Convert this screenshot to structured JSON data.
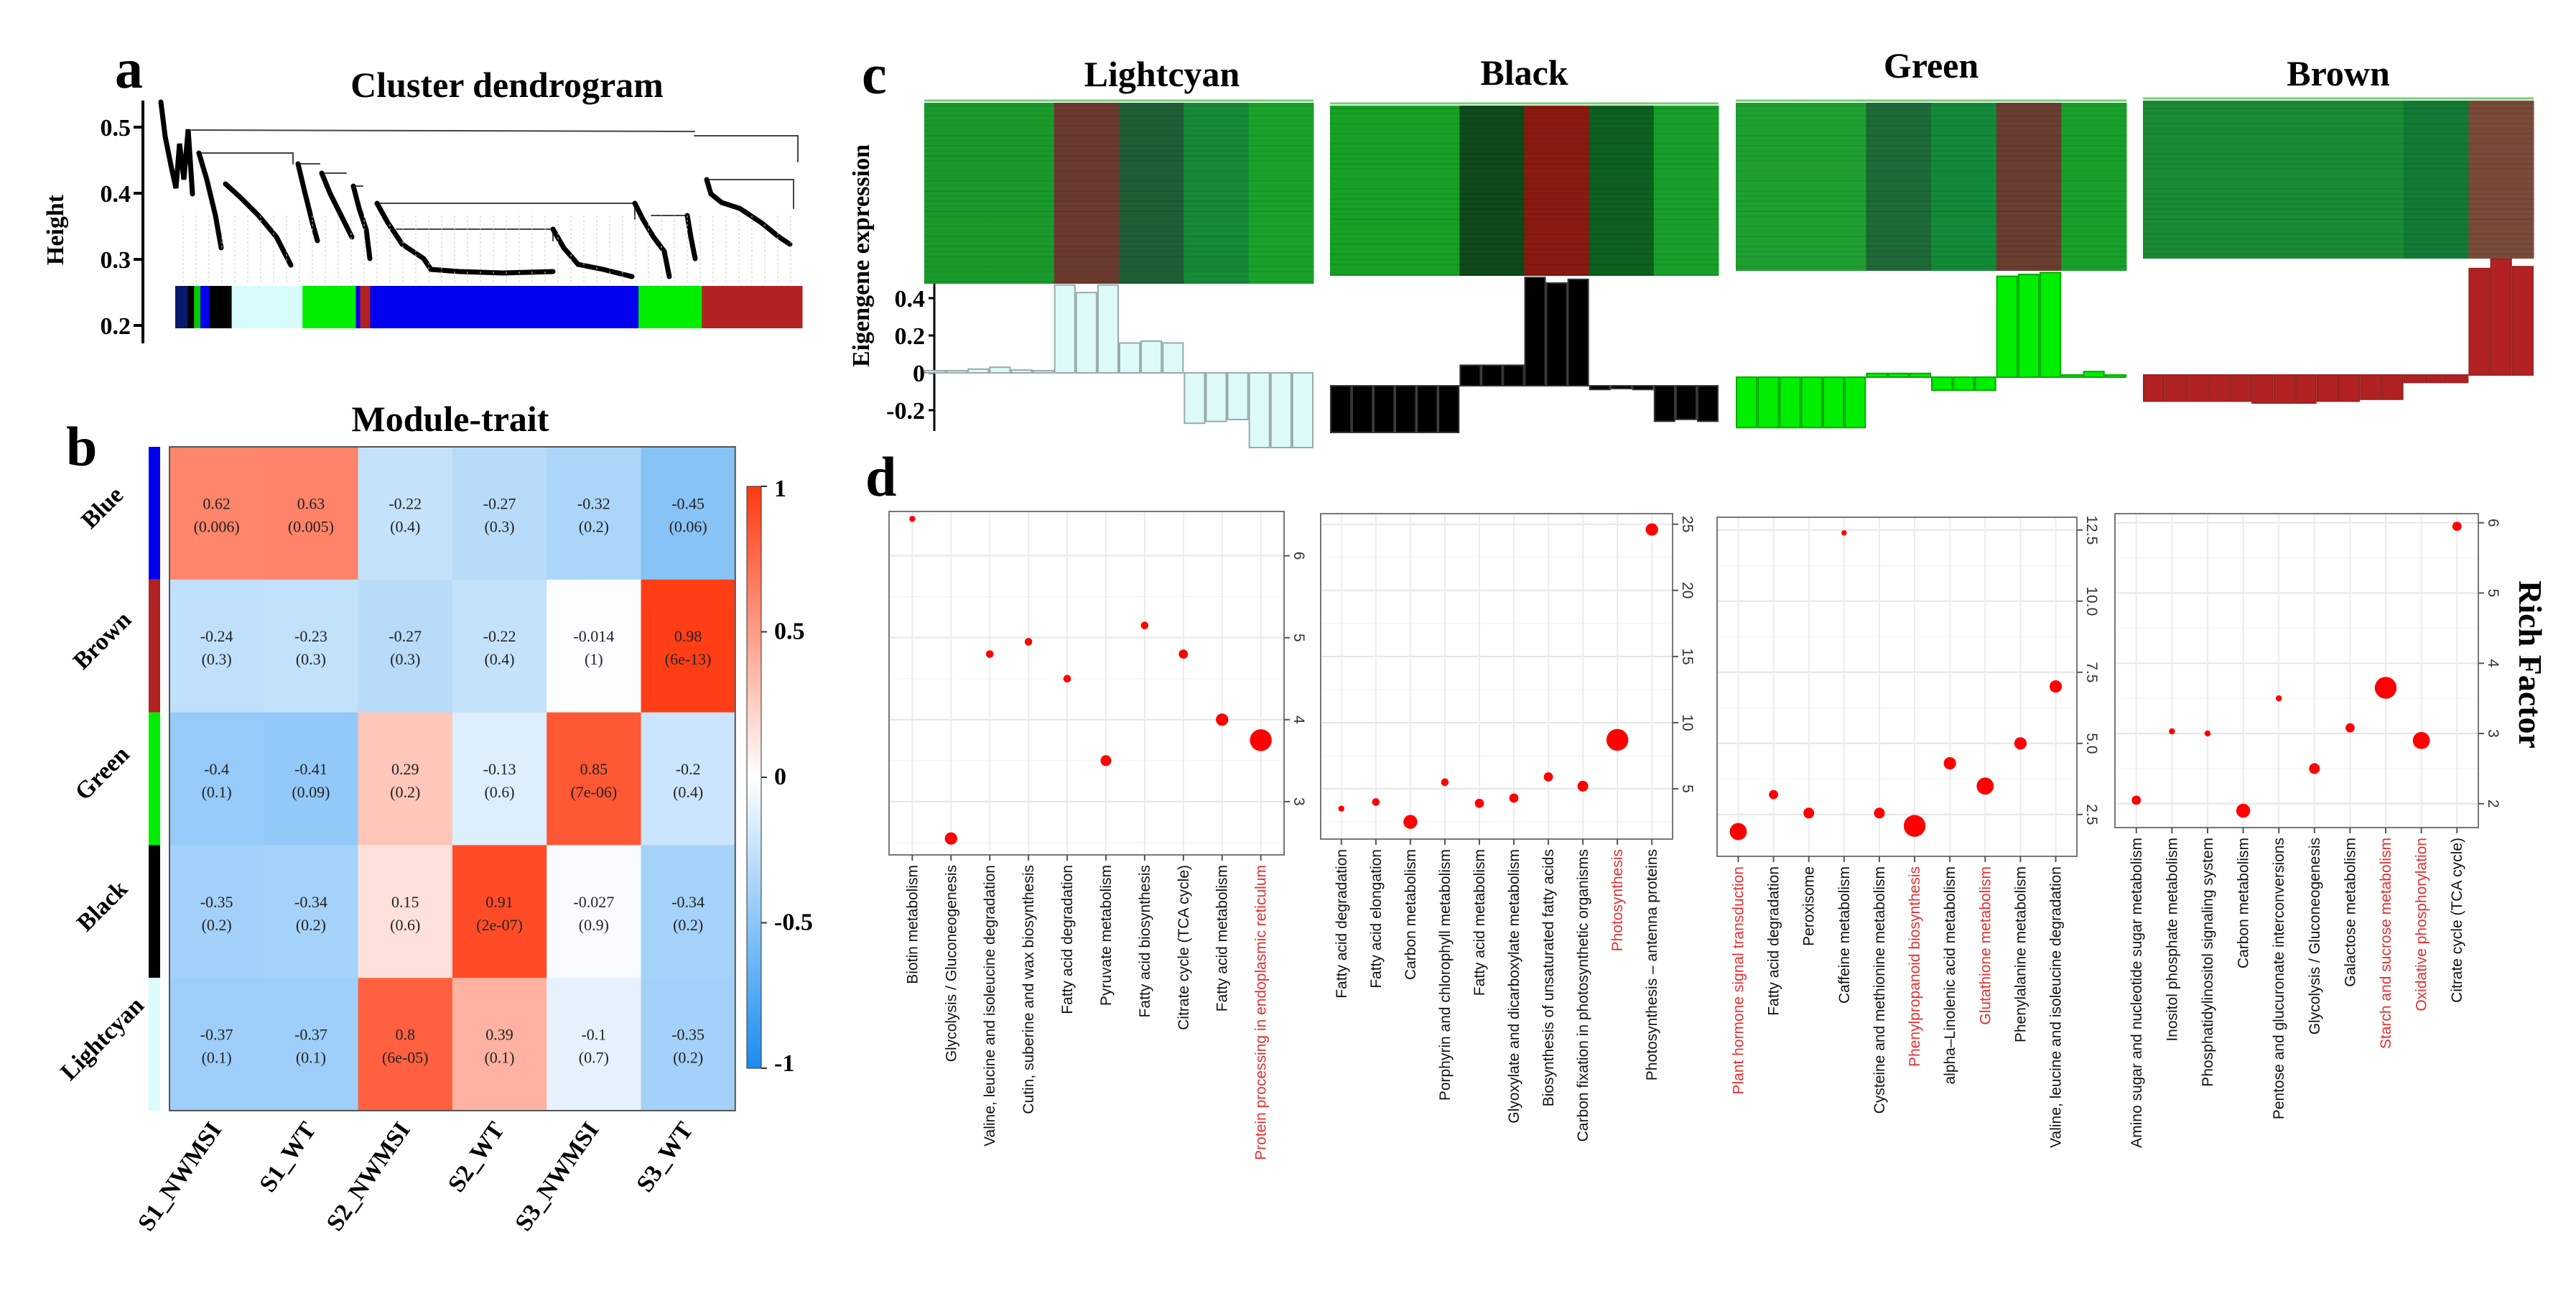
{
  "panel_labels": {
    "a": "a",
    "b": "b",
    "c": "c",
    "d": "d"
  },
  "chart_data": [
    {
      "type": "dendrogram",
      "title": "Cluster dendrogram",
      "ylabel": "Height",
      "yticks": [
        "0.5",
        "0.4",
        "0.3",
        "0.2"
      ],
      "module_color_strip": [
        "#0a1a6a",
        "#000000",
        "#00cc00",
        "#0000ee",
        "#000000",
        "#d8fbfb",
        "#00ee00",
        "#0000ee",
        "#b22222",
        "#0000ee",
        "#00ee00",
        "#b22222"
      ]
    },
    {
      "type": "heatmap",
      "title": "Module-trait",
      "rows": [
        "Blue",
        "Brown",
        "Green",
        "Black",
        "Lightcyan"
      ],
      "row_colors": [
        "#0000ee",
        "#b22222",
        "#00ee00",
        "#000000",
        "#dcfcfc"
      ],
      "columns": [
        "S1_NWMSI",
        "S1_WT",
        "S2_NWMSI",
        "S2_WT",
        "S3_NWMSI",
        "S3_WT"
      ],
      "values": [
        [
          0.62,
          0.63,
          -0.22,
          -0.27,
          -0.32,
          -0.45
        ],
        [
          -0.24,
          -0.23,
          -0.27,
          -0.22,
          -0.014,
          0.98
        ],
        [
          -0.4,
          -0.41,
          0.29,
          -0.13,
          0.85,
          -0.2
        ],
        [
          -0.35,
          -0.34,
          0.15,
          0.91,
          -0.027,
          -0.34
        ],
        [
          -0.37,
          -0.37,
          0.8,
          0.39,
          -0.1,
          -0.35
        ]
      ],
      "pvalues": [
        [
          "(0.006)",
          "(0.005)",
          "(0.4)",
          "(0.3)",
          "(0.2)",
          "(0.06)"
        ],
        [
          "(0.3)",
          "(0.3)",
          "(0.3)",
          "(0.4)",
          "(1)",
          "(6e-13)"
        ],
        [
          "(0.1)",
          "(0.09)",
          "(0.2)",
          "(0.6)",
          "(7e-06)",
          "(0.4)"
        ],
        [
          "(0.2)",
          "(0.2)",
          "(0.6)",
          "(2e-07)",
          "(0.9)",
          "(0.2)"
        ],
        [
          "(0.1)",
          "(0.1)",
          "(6e-05)",
          "(0.1)",
          "(0.7)",
          "(0.2)"
        ]
      ],
      "zlim": [
        -1,
        1
      ],
      "colorbar_ticks": [
        "1",
        "0.5",
        "0",
        "-0.5",
        "-1"
      ],
      "colors": {
        "positive": "#ff3a10",
        "negative": "#1a8cf0"
      }
    },
    {
      "type": "bar",
      "ylabel": "Eigengene expression",
      "yticks": [
        "0.4",
        "0.2",
        "0",
        "-0.2"
      ],
      "modules": [
        {
          "name": "Lightcyan",
          "bar_color": "#dcfafa",
          "bar_edge": "#9aa",
          "heatmap_columns": [
            "#1a9a2c",
            "#1a9a2c",
            "#6b3a2e",
            "#1e5e35",
            "#168a35",
            "#19a22a"
          ],
          "values": [
            0.003,
            0.01,
            0.02,
            0.03,
            0.015,
            0.005,
            0.47,
            0.43,
            0.47,
            0.16,
            0.17,
            0.16,
            -0.27,
            -0.26,
            -0.25,
            -0.4,
            -0.4,
            -0.4
          ]
        },
        {
          "name": "Black",
          "bar_color": "#000000",
          "bar_edge": "#333",
          "heatmap_columns": [
            "#16a224",
            "#16a224",
            "#0e4a1a",
            "#8a1a10",
            "#0d6020",
            "#18a02a"
          ],
          "values": [
            -0.25,
            -0.25,
            -0.25,
            -0.25,
            -0.25,
            -0.25,
            0.11,
            0.11,
            0.11,
            0.58,
            0.55,
            0.57,
            -0.02,
            -0.015,
            -0.02,
            -0.19,
            -0.18,
            -0.19
          ]
        },
        {
          "name": "Green",
          "bar_color": "#00ee00",
          "bar_edge": "#0a0",
          "heatmap_columns": [
            "#1ea030",
            "#1ea030",
            "#1d6a38",
            "#138a38",
            "#6a3e30",
            "#19a02a"
          ],
          "values": [
            -0.27,
            -0.27,
            -0.27,
            -0.27,
            -0.27,
            -0.27,
            0.02,
            0.02,
            0.02,
            -0.07,
            -0.07,
            -0.07,
            0.54,
            0.55,
            0.56,
            0.01,
            0.03,
            0.01
          ]
        },
        {
          "name": "Brown",
          "bar_color": "#b22222",
          "bar_edge": "#922",
          "heatmap_columns": [
            "#1a8a33",
            "#1a8a33",
            "#1a8a33",
            "#1a8a33",
            "#137a35",
            "#7a4a3a"
          ],
          "values": [
            -0.14,
            -0.14,
            -0.14,
            -0.14,
            -0.14,
            -0.15,
            -0.15,
            -0.15,
            -0.14,
            -0.14,
            -0.13,
            -0.13,
            -0.04,
            -0.04,
            -0.04,
            0.57,
            0.62,
            0.58
          ]
        }
      ]
    },
    {
      "type": "scatter",
      "ylabel": "Rich Factor",
      "point_color": "#ff0000",
      "highlight_color": "#e03030",
      "plots": [
        {
          "categories": [
            "Biotin metabolism",
            "Glycolysis / Gluconeogenesis",
            "Valine, leucine and isoleucine degradation",
            "Cutin, suberine and wax biosynthesis",
            "Fatty acid degradation",
            "Pyruvate metabolism",
            "Fatty acid biosynthesis",
            "Citrate cycle (TCA cycle)",
            "Fatty acid metabolism",
            "Protein processing in endoplasmic reticulum"
          ],
          "values": [
            6.45,
            2.55,
            4.8,
            4.95,
            4.5,
            3.5,
            5.15,
            4.8,
            4.0,
            3.75
          ],
          "sizes": [
            1,
            3,
            1.5,
            1.5,
            1.5,
            2.5,
            1.5,
            2,
            3,
            6
          ],
          "highlighted": [
            9
          ],
          "yticks": [
            "3",
            "4",
            "5",
            "6"
          ],
          "ylim": [
            2.35,
            6.54
          ]
        },
        {
          "categories": [
            "Fatty acid degradation",
            "Fatty acid elongation",
            "Carbon metabolism",
            "Porphyrin and chlorophyll metabolism",
            "Fatty acid metabolism",
            "Glyoxylate and dicarboxylate metabolism",
            "Biosynthesis of unsaturated fatty acids",
            "Carbon fixation in photosynthetic organisms",
            "Photosynthesis",
            "Photosynthesis – antenna proteins"
          ],
          "values": [
            3.5,
            4.0,
            2.5,
            5.5,
            3.9,
            4.3,
            5.9,
            5.2,
            8.7,
            24.6
          ],
          "sizes": [
            1,
            1.5,
            3.5,
            1.5,
            2,
            2,
            2,
            2.5,
            6,
            3
          ],
          "highlighted": [
            8
          ],
          "yticks": [
            "5",
            "10",
            "15",
            "20",
            "25"
          ],
          "ylim": [
            1.2,
            25.8
          ]
        },
        {
          "categories": [
            "Plant hormone signal transduction",
            "Fatty acid degradation",
            "Peroxisome",
            "Caffeine metabolism",
            "Cysteine and methionine metabolism",
            "Phenylpropanoid biosynthesis",
            "alpha–Linolenic acid metabolism",
            "Glutathione metabolism",
            "Phenylalanine metabolism",
            "Valine, leucine and isoleucine degradation"
          ],
          "values": [
            1.9,
            3.2,
            2.55,
            12.4,
            2.55,
            2.1,
            4.3,
            3.5,
            5.0,
            7.0
          ],
          "sizes": [
            4.5,
            2,
            2.5,
            0.8,
            2.5,
            6,
            3,
            4.5,
            3,
            3
          ],
          "highlighted": [
            0,
            5,
            7
          ],
          "yticks": [
            "2.5",
            "5.0",
            "7.5",
            "10.0",
            "12.5"
          ],
          "ylim": [
            1.03,
            12.95
          ]
        },
        {
          "categories": [
            "Amino sugar and nucleotide sugar metabolism",
            "Inositol phosphate metabolism",
            "Phosphatidylinositol signaling system",
            "Carbon metabolism",
            "Pentose and glucuronate interconversions",
            "Glycolysis / Gluconeogenesis",
            "Galactose metabolism",
            "Starch and sucrose metabolism",
            "Oxidative phosphorylation",
            "Citrate cycle (TCA cycle)"
          ],
          "values": [
            2.05,
            3.03,
            3.0,
            1.9,
            3.5,
            2.5,
            3.08,
            3.65,
            2.9,
            5.95
          ],
          "sizes": [
            2,
            1,
            1,
            3.5,
            1,
            2.5,
            2,
            6,
            4.5,
            2
          ],
          "highlighted": [
            7,
            8
          ],
          "yticks": [
            "2",
            "3",
            "4",
            "5",
            "6"
          ],
          "ylim": [
            1.66,
            6.13
          ]
        }
      ]
    }
  ]
}
